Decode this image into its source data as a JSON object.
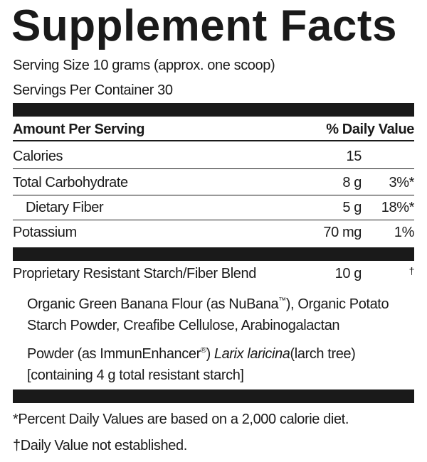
{
  "header": {
    "title": "Supplement Facts",
    "serving_size": "Serving Size 10 grams (approx. one scoop)",
    "servings_per_container": "Servings Per Container 30"
  },
  "table": {
    "columns": [
      "Amount Per Serving",
      "% Daily Value"
    ],
    "rows": [
      {
        "name": "Calories",
        "amount": "15"
      },
      {
        "name": "Total Carbohydrate",
        "amount": "8 g",
        "daily_value": "3%*"
      },
      {
        "name": "Dietary Fiber",
        "amount": "5 g",
        "daily_value": "18%*"
      },
      {
        "name": "Potassium",
        "amount": "70 mg",
        "daily_value": "1%"
      }
    ]
  },
  "blend": {
    "name": "Proprietary Resistant Starch/Fiber Blend",
    "amount": "10 g",
    "daily_value": "†",
    "description_lines": [
      [
        {
          "text": "Organic Green Banana Flour (as NuBana"
        },
        {
          "text": "™",
          "style": "sup"
        },
        {
          "text": "), Organic Potato"
        }
      ],
      [
        {
          "text": "Starch Powder, Creafibe Cellulose, Arabinogalactan"
        }
      ],
      [
        {
          "text": "Powder (as ImmunEnhancer"
        },
        {
          "text": "®",
          "style": "sup"
        },
        {
          "text": ")"
        },
        {
          "text": "Larix laricina",
          "style": "italic"
        },
        {
          "text": "(larch tree)"
        }
      ],
      [
        {
          "text": "[containing 4 g total resistant starch]"
        }
      ]
    ]
  },
  "footnotes": [
    "*Percent Daily Values are based on a 2,000 calorie diet.",
    "†Daily Value not established."
  ]
}
